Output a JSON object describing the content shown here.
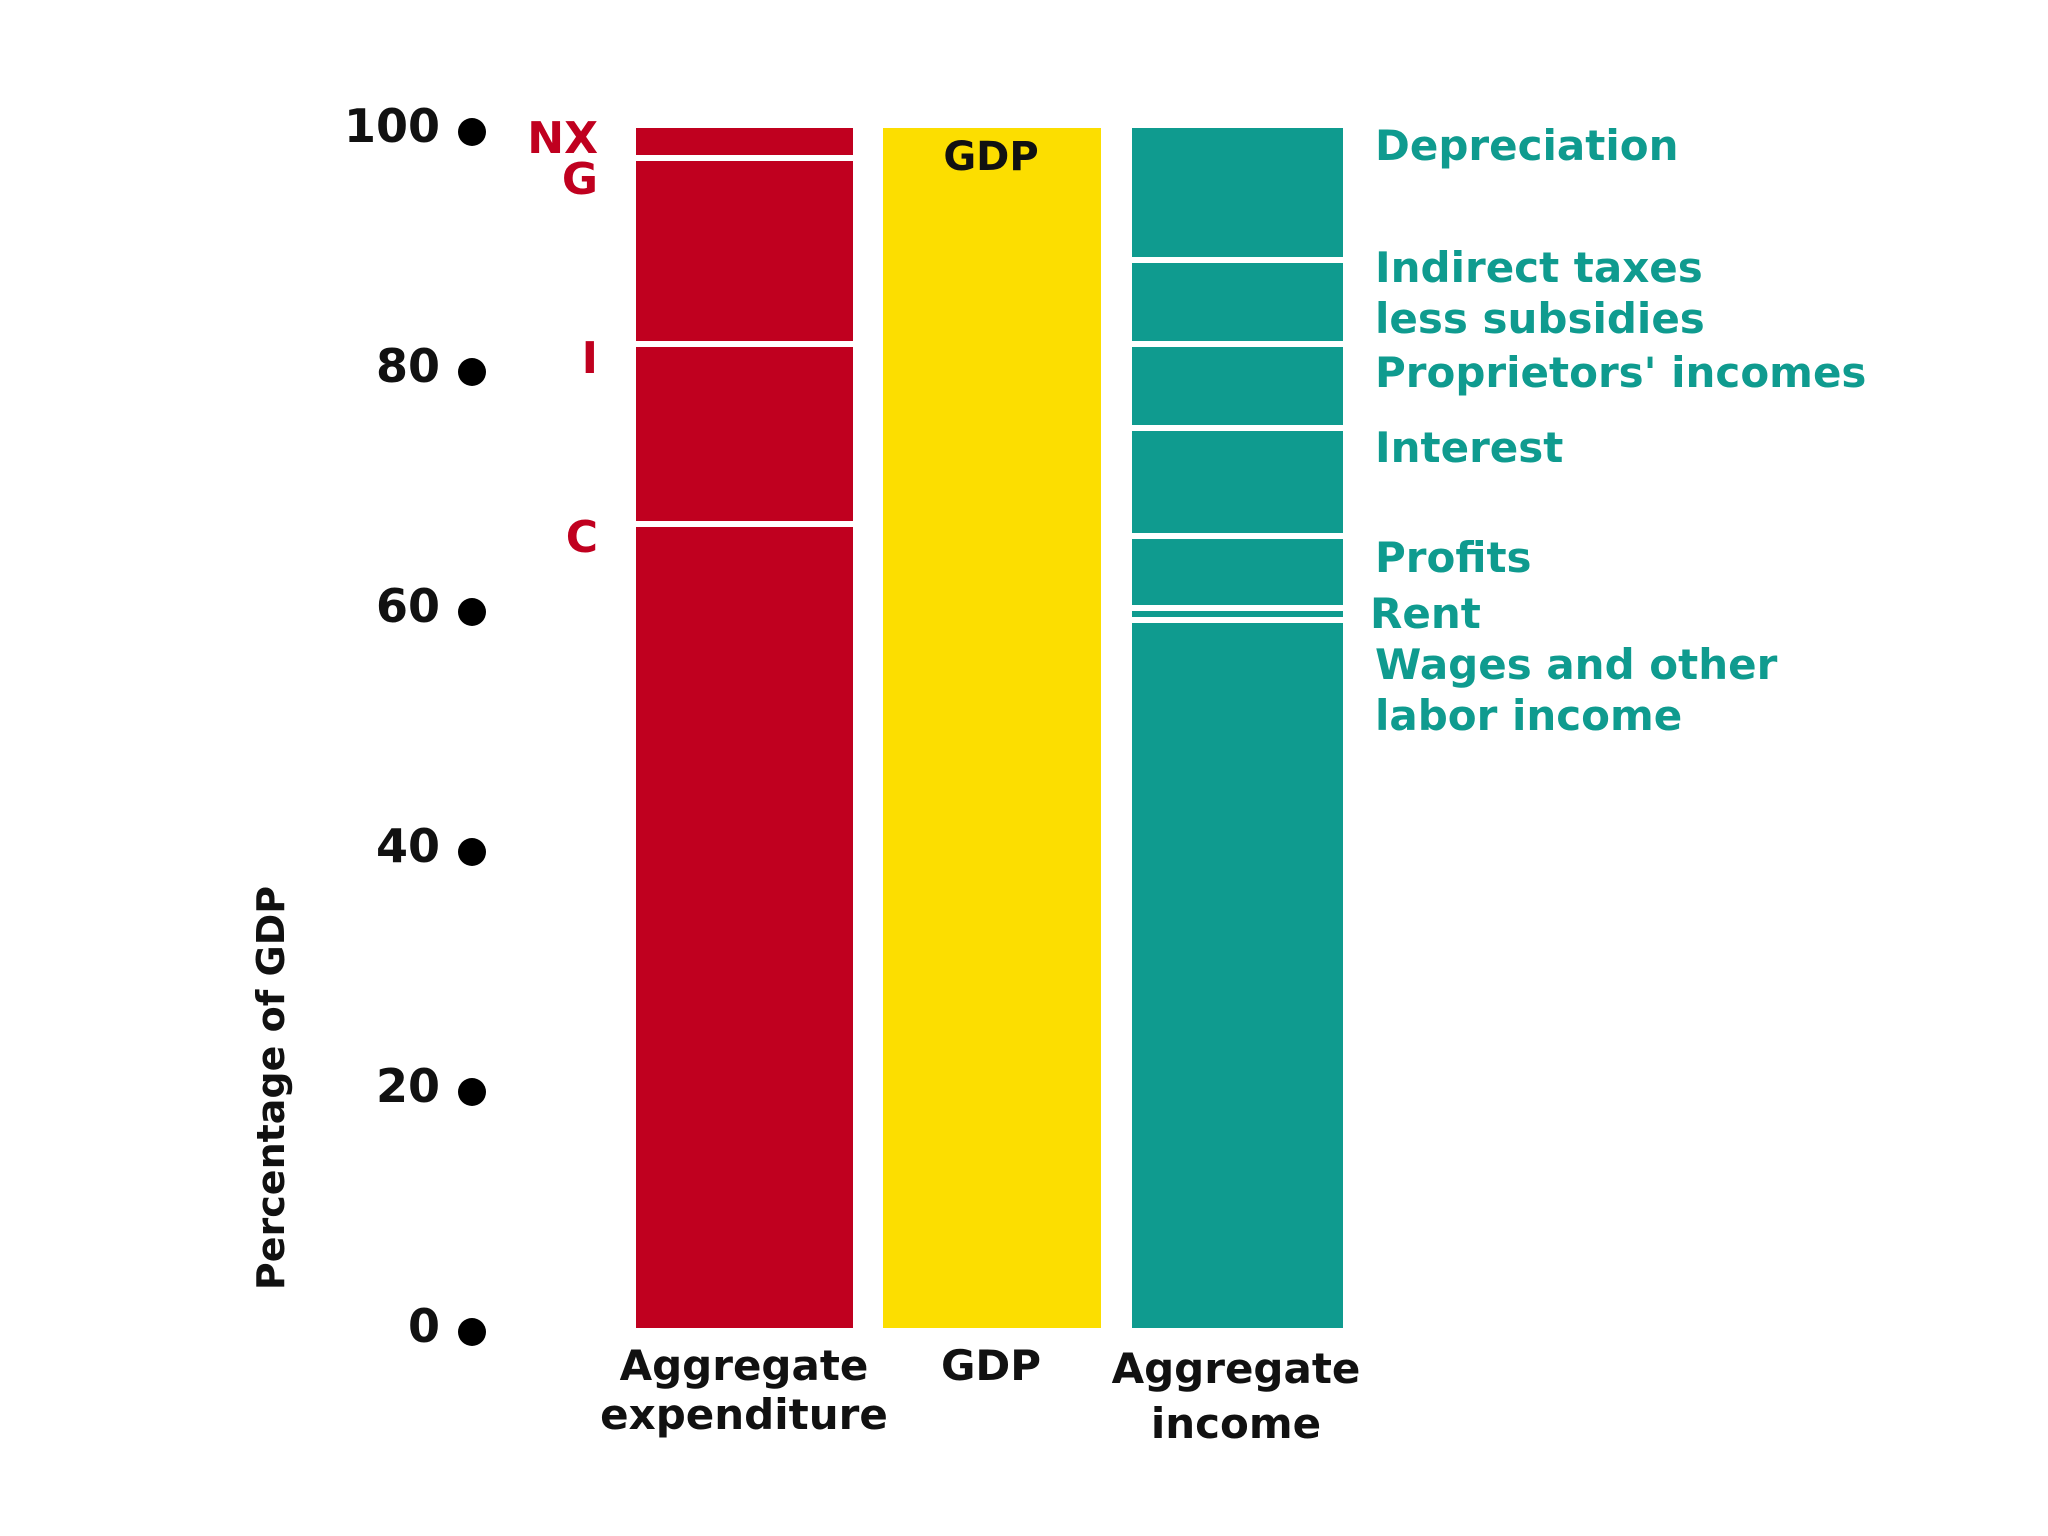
{
  "chart_data": {
    "type": "bar",
    "stacked": true,
    "ylabel": "Percentage of GDP",
    "ylim": [
      0,
      100
    ],
    "yticks": [
      0,
      20,
      40,
      60,
      80,
      100
    ],
    "categories": [
      {
        "id": "expenditure",
        "lines": [
          "Aggregate",
          "expenditure"
        ]
      },
      {
        "id": "gdp",
        "lines": [
          "GDP"
        ]
      },
      {
        "id": "income",
        "lines": [
          "Aggregate",
          "income"
        ]
      }
    ],
    "gdp_bar_label": "GDP",
    "expenditure_components": [
      {
        "name": "C",
        "value": 67
      },
      {
        "name": "I",
        "value": 15
      },
      {
        "name": "G",
        "value": 15.5
      },
      {
        "name": "NX",
        "value": 2.5
      }
    ],
    "income_components": [
      {
        "name": "Wages and other labor income",
        "lines": [
          "Wages and other",
          "labor income"
        ],
        "value": 59
      },
      {
        "name": "Rent",
        "lines": [
          "Rent"
        ],
        "value": 1
      },
      {
        "name": "Profits",
        "lines": [
          "Profits"
        ],
        "value": 6
      },
      {
        "name": "Interest",
        "lines": [
          "Interest"
        ],
        "value": 9
      },
      {
        "name": "Proprietors' incomes",
        "lines": [
          "Proprietors' incomes"
        ],
        "value": 7
      },
      {
        "name": "Indirect taxes less subsidies",
        "lines": [
          "Indirect taxes",
          "less subsidies"
        ],
        "value": 7
      },
      {
        "name": "Depreciation",
        "lines": [
          "Depreciation"
        ],
        "value": 11
      }
    ],
    "gdp_value": 100
  },
  "colors": {
    "expenditure": "#c0001f",
    "gdp": "#fcde00",
    "income": "#0f9b8f",
    "separator": "#ffffff",
    "text": "#111111"
  }
}
